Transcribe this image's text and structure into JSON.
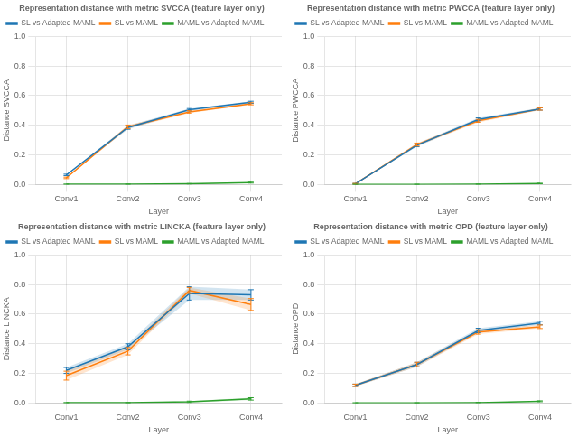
{
  "chart_data": [
    {
      "type": "line",
      "title": "Representation distance with metric SVCCA (feature layer only)",
      "x_label": "Layer",
      "y_label": "Distance SVCCA",
      "categories": [
        "Conv1",
        "Conv2",
        "Conv3",
        "Conv4"
      ],
      "series": [
        {
          "name": "SL vs Adapted MAML",
          "color": "#1f77b4",
          "values": [
            0.065,
            0.385,
            0.505,
            0.555
          ],
          "std": [
            0.005,
            0.012,
            0.008,
            0.007
          ]
        },
        {
          "name": "SL vs MAML",
          "color": "#ff7f0e",
          "values": [
            0.045,
            0.39,
            0.49,
            0.545
          ],
          "std": [
            0.005,
            0.012,
            0.008,
            0.007
          ]
        },
        {
          "name": "MAML vs Adapted MAML",
          "color": "#2ca02c",
          "values": [
            0.002,
            0.002,
            0.005,
            0.013
          ],
          "std": [
            0.001,
            0.001,
            0.002,
            0.003
          ]
        }
      ],
      "ylim": [
        0.0,
        1.0
      ],
      "yticks": [
        {
          "value": 0,
          "label": "0.0"
        },
        0.2,
        0.4,
        0.6,
        0.8,
        {
          "value": 1,
          "label": "1.0"
        }
      ],
      "grid": true,
      "legend": "upper left"
    },
    {
      "type": "line",
      "title": "Representation distance with metric PWCCA (feature layer only)",
      "x_label": "Layer",
      "y_label": "Distance PWCCA",
      "categories": [
        "Conv1",
        "Conv2",
        "Conv3",
        "Conv4"
      ],
      "series": [
        {
          "name": "SL vs Adapted MAML",
          "color": "#1f77b4",
          "values": [
            0.005,
            0.265,
            0.44,
            0.51
          ],
          "std": [
            0.003,
            0.01,
            0.01,
            0.008
          ]
        },
        {
          "name": "SL vs MAML",
          "color": "#ff7f0e",
          "values": [
            0.005,
            0.27,
            0.43,
            0.51
          ],
          "std": [
            0.003,
            0.01,
            0.01,
            0.008
          ]
        },
        {
          "name": "MAML vs Adapted MAML",
          "color": "#2ca02c",
          "values": [
            0.001,
            0.001,
            0.002,
            0.007
          ],
          "std": [
            0.001,
            0.001,
            0.001,
            0.002
          ]
        }
      ],
      "ylim": [
        0.0,
        1.0
      ],
      "yticks": [
        {
          "value": 0,
          "label": "0.0"
        },
        0.2,
        0.4,
        0.6,
        0.8,
        {
          "value": 1,
          "label": "1.0"
        }
      ],
      "grid": true,
      "legend": "upper left"
    },
    {
      "type": "line",
      "title": "Representation distance with metric LINCKA (feature layer only)",
      "x_label": "Layer",
      "y_label": "Distance LINCKA",
      "categories": [
        "Conv1",
        "Conv2",
        "Conv3",
        "Conv4"
      ],
      "series": [
        {
          "name": "SL vs Adapted MAML",
          "color": "#1f77b4",
          "values": [
            0.22,
            0.38,
            0.74,
            0.73
          ],
          "std": [
            0.02,
            0.02,
            0.045,
            0.035
          ]
        },
        {
          "name": "SL vs MAML",
          "color": "#ff7f0e",
          "values": [
            0.185,
            0.35,
            0.76,
            0.665
          ],
          "std": [
            0.03,
            0.025,
            0.02,
            0.04
          ]
        },
        {
          "name": "MAML vs Adapted MAML",
          "color": "#2ca02c",
          "values": [
            0.002,
            0.002,
            0.008,
            0.028
          ],
          "std": [
            0.001,
            0.001,
            0.005,
            0.008
          ]
        }
      ],
      "ylim": [
        0.0,
        1.0
      ],
      "yticks": [
        {
          "value": 0,
          "label": "0.0"
        },
        0.2,
        0.4,
        0.6,
        0.8,
        {
          "value": 1,
          "label": "1.0"
        }
      ],
      "grid": true,
      "legend": "upper left"
    },
    {
      "type": "line",
      "title": "Representation distance with metric OPD (feature layer only)",
      "x_label": "Layer",
      "y_label": "Distance OPD",
      "categories": [
        "Conv1",
        "Conv2",
        "Conv3",
        "Conv4"
      ],
      "series": [
        {
          "name": "SL vs Adapted MAML",
          "color": "#1f77b4",
          "values": [
            0.12,
            0.26,
            0.49,
            0.54
          ],
          "std": [
            0.008,
            0.015,
            0.015,
            0.012
          ]
        },
        {
          "name": "SL vs MAML",
          "color": "#ff7f0e",
          "values": [
            0.12,
            0.26,
            0.48,
            0.515
          ],
          "std": [
            0.008,
            0.015,
            0.015,
            0.012
          ]
        },
        {
          "name": "MAML vs Adapted MAML",
          "color": "#2ca02c",
          "values": [
            0.001,
            0.001,
            0.003,
            0.012
          ],
          "std": [
            0.001,
            0.001,
            0.001,
            0.003
          ]
        }
      ],
      "ylim": [
        0.0,
        1.0
      ],
      "yticks": [
        {
          "value": 0,
          "label": "0.0"
        },
        0.2,
        0.4,
        0.6,
        0.8,
        {
          "value": 1,
          "label": "1.0"
        }
      ],
      "grid": true,
      "legend": "upper left"
    }
  ]
}
